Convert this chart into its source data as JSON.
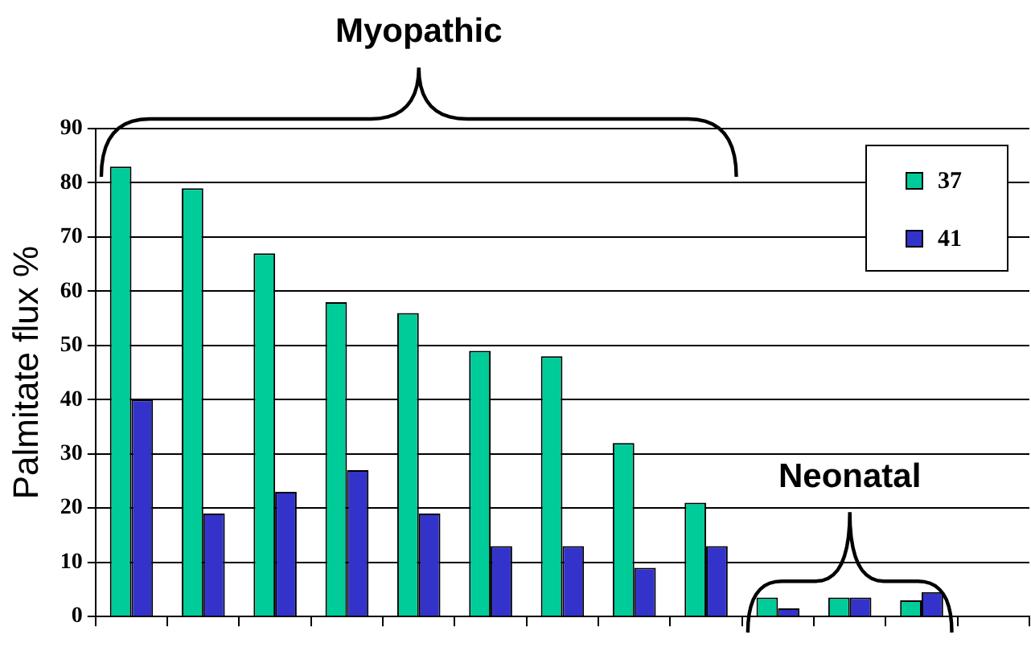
{
  "chart_data": {
    "type": "bar",
    "ylabel": "Palmitate flux %",
    "categories": [
      null,
      null,
      null,
      null,
      null,
      null,
      null,
      null,
      null,
      null,
      null,
      null,
      null
    ],
    "series": [
      {
        "name": "37",
        "color": "#00cc99",
        "values": [
          83,
          79,
          67,
          58,
          56,
          49,
          48,
          32,
          21,
          3.5,
          3.5,
          3,
          null
        ]
      },
      {
        "name": "41",
        "color": "#3333cc",
        "values": [
          40,
          19,
          23,
          27,
          19,
          13,
          13,
          9,
          13,
          1.5,
          3.5,
          4.5,
          null
        ]
      }
    ],
    "ylim": [
      0,
      90
    ],
    "yticks": [
      0,
      10,
      20,
      30,
      40,
      50,
      60,
      70,
      80,
      90
    ],
    "grid": "y",
    "legend": "top right",
    "annotations": [
      "Myopathic",
      "Neonatal"
    ]
  }
}
